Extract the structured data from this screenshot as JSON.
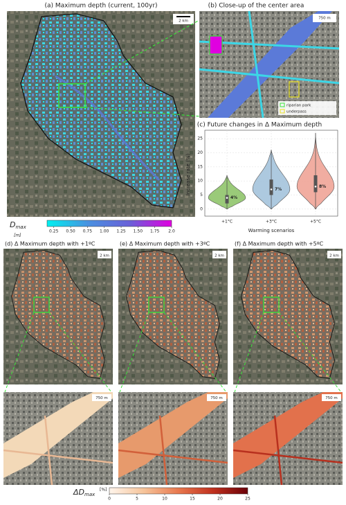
{
  "panels": {
    "a_title": "(a) Maximum depth (current, 100yr)",
    "b_title": "(b) Close-up of the center area",
    "d_title": "(d) Δ Maximum depth with +1ºC",
    "e_title": "(e) Δ Maximum depth with +3ºC",
    "f_title": "(f) Δ Maximum depth with +5ºC",
    "scale_map": "2 km",
    "scale_closeup": "750 m",
    "legend_park": "riparian park",
    "legend_underpass": "underpass"
  },
  "depth_colorbar": {
    "symbol": "D",
    "subscript": "max",
    "unit": "[m]",
    "lim": [
      0.15,
      2.0
    ],
    "colors": [
      "#00f0f0",
      "#4a90e0",
      "#6a60d8",
      "#e000e0"
    ],
    "ticks": [
      0.25,
      {
        "value": 0.5,
        "label": "0.50"
      },
      0.75,
      {
        "value": 1,
        "label": "1.00"
      },
      1.25,
      {
        "value": 1.5,
        "label": "1.50"
      },
      1.75,
      {
        "value": 2,
        "label": "2.0"
      }
    ]
  },
  "change_colorbar": {
    "symbol": "ΔD",
    "subscript": "max",
    "unit": "[%]",
    "lim": [
      0,
      25
    ],
    "colors": [
      "#fff5ec",
      "#f6c49a",
      "#e8784e",
      "#c0301e",
      "#6a0008"
    ],
    "ticks": [
      0,
      5,
      10,
      15,
      20,
      25
    ]
  },
  "chart_data": {
    "type": "violin",
    "title": "(c) Future changes in Δ Maximum depth",
    "x_label": "Warming scenarios",
    "y_label": "Increase rate (%)",
    "categories": [
      "+1°C",
      "+3°C",
      "+5°C"
    ],
    "colors": [
      "#8fc46a",
      "#a4c3dc",
      "#f0a497"
    ],
    "min": [
      0,
      0,
      0
    ],
    "q1": [
      2,
      5,
      6
    ],
    "median": [
      4,
      7,
      8
    ],
    "q3": [
      5,
      10.5,
      12
    ],
    "max": [
      12,
      21,
      27
    ],
    "value_labels": [
      "4%",
      "7%",
      "8%"
    ],
    "ylim": [
      -2.5,
      28
    ],
    "yticks": [
      0,
      5,
      10,
      15,
      20,
      25
    ],
    "grid": true
  }
}
